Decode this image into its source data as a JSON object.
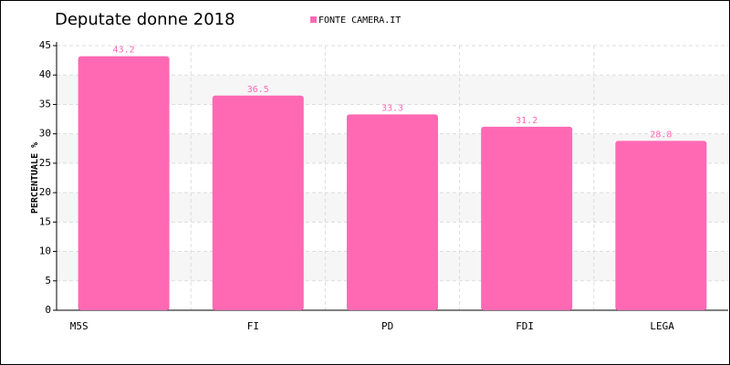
{
  "chart_data": {
    "type": "bar",
    "title": "Deputate donne 2018",
    "y_label": "PERCENTUALE %",
    "categories": [
      "M5S",
      "FI",
      "PD",
      "FDI",
      "LEGA"
    ],
    "series": [
      {
        "name": "FONTE CAMERA.IT",
        "color": "#ff69b4",
        "values": [
          43.2,
          36.5,
          33.3,
          31.2,
          28.8
        ]
      }
    ],
    "ylim": [
      0,
      45
    ],
    "yticks": [
      0,
      5,
      10,
      15,
      20,
      25,
      30,
      35,
      40,
      45
    ],
    "grid": true,
    "legend": "top"
  }
}
